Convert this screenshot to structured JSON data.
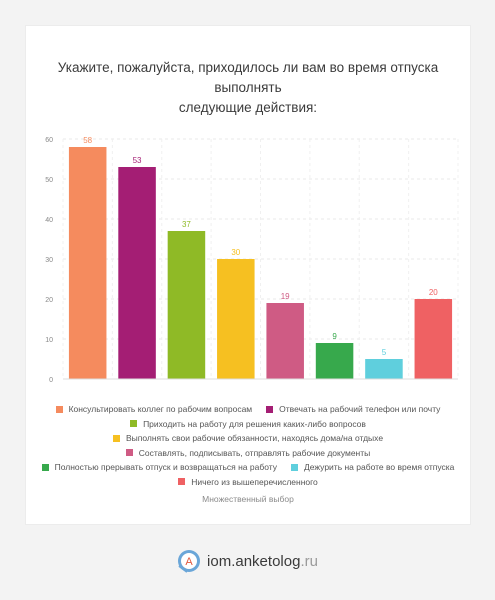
{
  "chart_data": {
    "type": "bar",
    "title": "Укажите, пожалуйста, приходилось ли вам во время отпуска выполнять следующие действия:",
    "title_lines": [
      "Укажите, пожалуйста, приходилось ли вам во время отпуска выполнять",
      "следующие действия:"
    ],
    "categories": [
      "Консультировать коллег по рабочим вопросам",
      "Отвечать на рабочий телефон или почту",
      "Приходить на работу для решения каких-либо вопросов",
      "Выполнять свои рабочие обязанности, находясь дома/на отдыхе",
      "Составлять, подписывать, отправлять рабочие документы",
      "Полностью прерывать отпуск и возвращаться на работу",
      "Дежурить на работе во время отпуска",
      "Ничего из вышеперечисленного"
    ],
    "values": [
      58,
      53,
      37,
      30,
      19,
      9,
      5,
      20
    ],
    "colors": [
      "#f58b5e",
      "#a41e74",
      "#8fba26",
      "#f6c021",
      "#cf5b84",
      "#37a94c",
      "#5fcfdd",
      "#ef6163"
    ],
    "ylim": [
      0,
      60
    ],
    "yticks": [
      0,
      10,
      20,
      30,
      40,
      50,
      60
    ],
    "grid": true,
    "legend_position": "bottom",
    "xlabel": "",
    "ylabel": ""
  },
  "caption": "Множественный выбор",
  "brand": {
    "logo_letter": "A",
    "name": "iom.anketolog",
    "tld": ".ru"
  }
}
